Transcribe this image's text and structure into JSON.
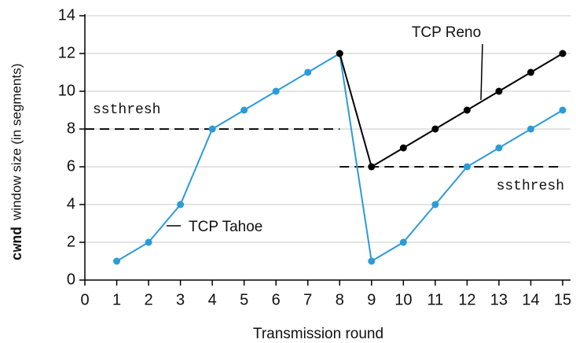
{
  "chart_data": {
    "type": "line",
    "x_label": "Transmission round",
    "y_label": {
      "var": "cwnd",
      "text": "window size (in segments)"
    },
    "series": [
      {
        "name": "TCP Tahoe",
        "color": "#2b9bd9",
        "x": [
          1,
          2,
          3,
          4,
          5,
          6,
          7,
          8,
          9,
          10,
          11,
          12,
          13,
          14,
          15
        ],
        "values": [
          1,
          2,
          4,
          8,
          9,
          10,
          11,
          12,
          1,
          2,
          4,
          6,
          7,
          8,
          9
        ]
      },
      {
        "name": "TCP Reno",
        "color": "#000000",
        "x": [
          8,
          9,
          10,
          11,
          12,
          13,
          14,
          15
        ],
        "values": [
          12,
          6,
          7,
          8,
          9,
          10,
          11,
          12
        ]
      }
    ],
    "thresholds": [
      {
        "label": "ssthresh",
        "value": 8,
        "x": [
          0,
          8
        ]
      },
      {
        "label": "ssthresh",
        "value": 6,
        "x": [
          8,
          15
        ]
      }
    ],
    "xlim": [
      0,
      15
    ],
    "xticks": [
      0,
      1,
      2,
      3,
      4,
      5,
      6,
      7,
      8,
      9,
      10,
      11,
      12,
      13,
      14,
      15
    ],
    "ylim": [
      0,
      14
    ],
    "yticks": [
      0,
      2,
      4,
      6,
      8,
      10,
      12,
      14
    ],
    "grid": true
  }
}
